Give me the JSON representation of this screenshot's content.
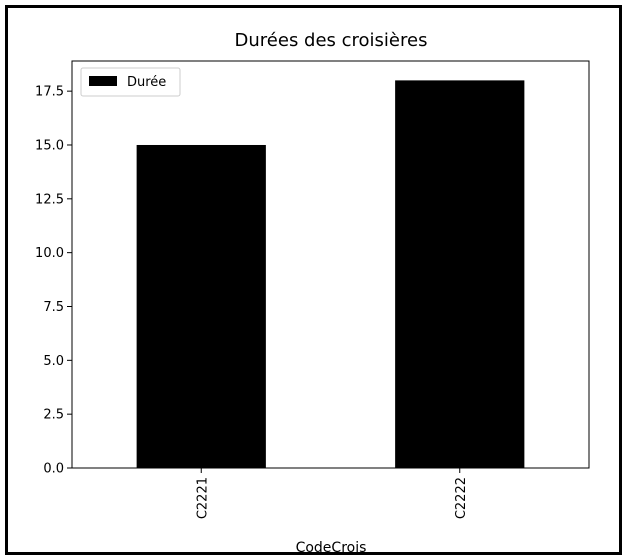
{
  "chart_data": {
    "type": "bar",
    "title": "Durées des croisières",
    "xlabel": "CodeCrois",
    "ylabel": "",
    "categories": [
      "C2221",
      "C2222"
    ],
    "series": [
      {
        "name": "Durée",
        "values": [
          15.0,
          18.0
        ],
        "color": "#000000"
      }
    ],
    "ylim": [
      0,
      18.9
    ],
    "yticks": [
      "0.0",
      "2.5",
      "5.0",
      "7.5",
      "10.0",
      "12.5",
      "15.0",
      "17.5"
    ],
    "legend_position": "top-left",
    "grid": false
  }
}
